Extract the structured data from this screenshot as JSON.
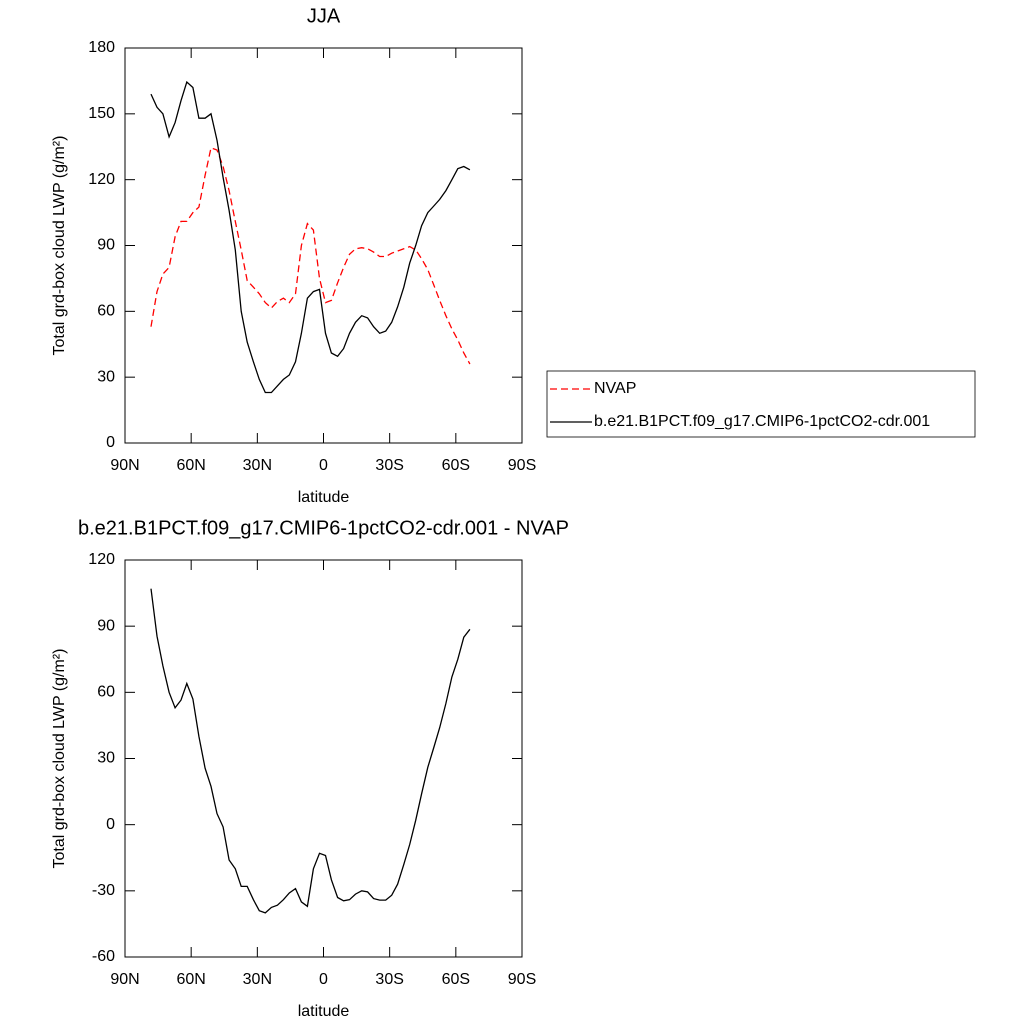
{
  "chart_data": [
    {
      "type": "line",
      "title": "JJA",
      "x_label": "latitude",
      "y_label": "Total grd-box cloud LWP (g/m²)",
      "x": [
        78.2,
        75.5,
        72.8,
        70,
        67.3,
        64.6,
        62,
        59.2,
        56.5,
        53.7,
        51,
        48.3,
        45.5,
        42.8,
        40,
        37.3,
        34.6,
        31.8,
        29.1,
        26.4,
        23.6,
        20.9,
        18.2,
        15.5,
        12.7,
        10,
        7.3,
        4.6,
        1.8,
        -0.9,
        -3.6,
        -6.4,
        -9.1,
        -11.8,
        -14.5,
        -17.3,
        -20,
        -22.7,
        -25.5,
        -28.2,
        -30.9,
        -33.6,
        -36.4,
        -39.1,
        -41.8,
        -44.5,
        -47.3,
        -50,
        -52.7,
        -55.5,
        -58.2,
        -60.9,
        -63.6,
        -66.4
      ],
      "series": [
        {
          "name": "NVAP",
          "color": "#ff0000",
          "line_style": "dashed",
          "values": [
            53,
            69,
            77,
            80,
            94,
            101,
            101,
            105,
            107.5,
            122,
            134.5,
            133.5,
            126,
            115,
            101,
            88,
            74,
            71,
            68,
            64,
            61.5,
            64.5,
            66,
            64,
            68,
            90,
            100,
            97,
            75,
            64,
            65,
            73,
            80,
            86,
            88.5,
            89,
            88.5,
            87,
            85,
            85,
            86.5,
            87.5,
            88.5,
            89.5,
            88,
            84,
            79,
            72,
            65,
            58,
            52,
            47,
            41,
            36
          ]
        },
        {
          "name": "b.e21.B1PCT.f09_g17.CMIP6-1pctCO2-cdr.001",
          "color": "#000000",
          "line_style": "solid",
          "values": [
            159,
            153,
            150,
            139.5,
            146,
            156,
            164.5,
            162,
            148,
            148,
            150,
            138,
            121,
            106,
            88,
            60,
            46,
            37,
            29,
            23,
            23,
            26,
            29,
            31,
            37,
            50,
            66,
            69,
            70,
            50,
            41,
            39.5,
            43,
            50,
            55,
            58,
            57,
            53,
            50,
            51,
            55,
            62,
            71,
            82,
            90,
            99,
            105,
            108,
            111,
            115,
            120,
            125,
            126,
            124.5
          ]
        }
      ],
      "xlim": [
        90,
        -90
      ],
      "xticks": [
        {
          "value": 90,
          "label": "90N"
        },
        {
          "value": 60,
          "label": "60N"
        },
        {
          "value": 30,
          "label": "30N"
        },
        0,
        {
          "value": -30,
          "label": "30S"
        },
        {
          "value": -60,
          "label": "60S"
        },
        {
          "value": -90,
          "label": "90S"
        }
      ],
      "ylim": [
        0,
        180
      ],
      "yticks": [
        0,
        30,
        60,
        90,
        120,
        150,
        180
      ],
      "legend": "right"
    },
    {
      "type": "line",
      "title": "b.e21.B1PCT.f09_g17.CMIP6-1pctCO2-cdr.001 - NVAP",
      "x_label": "latitude",
      "y_label": "Total grd-box cloud LWP (g/m²)",
      "x": [
        78.2,
        75.5,
        72.8,
        70,
        67.3,
        64.6,
        62,
        59.2,
        56.5,
        53.7,
        51,
        48.3,
        45.5,
        42.8,
        40,
        37.3,
        34.6,
        31.8,
        29.1,
        26.4,
        23.6,
        20.9,
        18.2,
        15.5,
        12.7,
        10,
        7.3,
        4.6,
        1.8,
        -0.9,
        -3.6,
        -6.4,
        -9.1,
        -11.8,
        -14.5,
        -17.3,
        -20,
        -22.7,
        -25.5,
        -28.2,
        -30.9,
        -33.6,
        -36.4,
        -39.1,
        -41.8,
        -44.5,
        -47.3,
        -50,
        -52.7,
        -55.5,
        -58.2,
        -60.9,
        -63.6,
        -66.4
      ],
      "series": [
        {
          "color": "#000000",
          "line_style": "solid",
          "values": [
            107,
            85.5,
            72,
            60,
            53,
            56.5,
            64,
            57,
            40,
            25.6,
            17.4,
            5,
            -1,
            -16,
            -20,
            -28,
            -28,
            -34,
            -39,
            -40,
            -37.5,
            -36.5,
            -34,
            -31,
            -29,
            -35,
            -37,
            -20,
            -13,
            -14,
            -25,
            -33,
            -34.5,
            -34,
            -31.5,
            -30,
            -30.5,
            -33.5,
            -34.2,
            -34.2,
            -32,
            -27,
            -18,
            -9,
            2,
            14,
            26,
            35,
            44,
            55,
            67,
            75,
            85,
            88.6
          ]
        }
      ],
      "xlim": [
        90,
        -90
      ],
      "xticks": [
        {
          "value": 90,
          "label": "90N"
        },
        {
          "value": 60,
          "label": "60N"
        },
        {
          "value": 30,
          "label": "30N"
        },
        0,
        {
          "value": -30,
          "label": "30S"
        },
        {
          "value": -60,
          "label": "60S"
        },
        {
          "value": -90,
          "label": "90S"
        }
      ],
      "ylim": [
        -60,
        120
      ],
      "yticks": [
        -60,
        -30,
        0,
        30,
        60,
        90,
        120
      ]
    }
  ]
}
